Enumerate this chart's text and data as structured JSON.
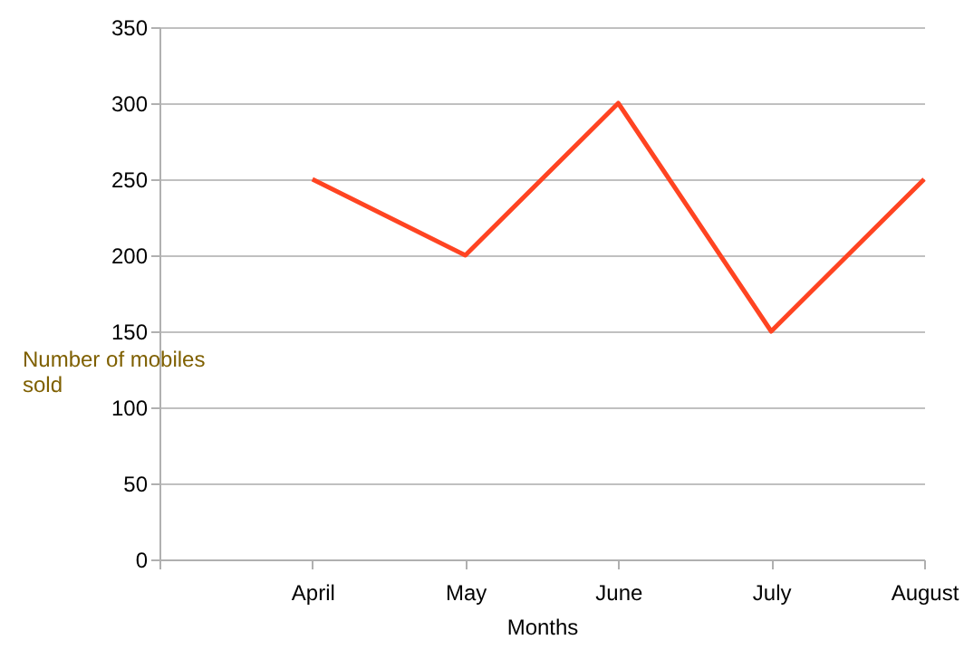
{
  "chart_data": {
    "type": "line",
    "xlabel": "Months",
    "ylabel": "Number of mobiles sold",
    "categories": [
      null,
      "April",
      "May",
      "June",
      "July",
      "August"
    ],
    "series": [
      {
        "color": "#ff4422",
        "values": [
          null,
          250,
          200,
          300,
          150,
          250
        ]
      }
    ],
    "ylim": [
      0,
      350
    ],
    "yticks": [
      0,
      50,
      100,
      150,
      200,
      250,
      300,
      350
    ],
    "grid": "y",
    "marker": "none",
    "line_style": "solid"
  }
}
